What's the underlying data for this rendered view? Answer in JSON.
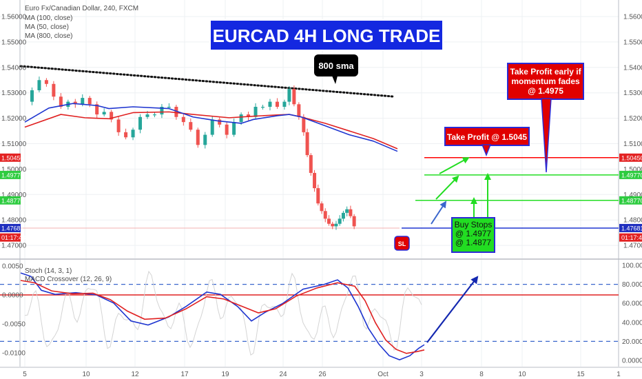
{
  "header": {
    "symbol_line": "Euro Fx/Canadian Dollar, 240, FXCM",
    "studies": [
      "MA (100, close)",
      "MA (50, close)",
      "MA (800, close)"
    ]
  },
  "lower_pane": {
    "studies": [
      "Stoch (14, 3, 1)",
      "MACD Crossover (12, 26, 9)"
    ]
  },
  "annotations": {
    "title": "EURCAD 4H LONG TRADE",
    "sma_label": "800 sma",
    "tp_early": [
      "Take Profit early if",
      "momentum fades",
      "@ 1.4975"
    ],
    "tp_main": "Take Profit @ 1.5045",
    "buy_stops": [
      "Buy Stops",
      "@ 1.4977",
      "@ 1.4877"
    ],
    "sl": "SL"
  },
  "price_axis": {
    "ticks": [
      "1.56000",
      "1.55000",
      "1.54000",
      "1.53000",
      "1.52000",
      "1.51000",
      "1.50000",
      "1.49000",
      "1.48000",
      "1.47000"
    ],
    "tags": [
      {
        "text": "1.50450",
        "value": 1.5045,
        "color": "#e32222"
      },
      {
        "text": "1.49770",
        "value": 1.4977,
        "color": "#2ecc40"
      },
      {
        "text": "1.48770",
        "value": 1.4877,
        "color": "#2ecc40"
      },
      {
        "text": "1.47681",
        "value": 1.47681,
        "color": "#1f2fbf"
      },
      {
        "text": "01:17:48",
        "value": 1.4731,
        "color": "#e32222"
      }
    ]
  },
  "osc_axis_left": {
    "ticks": [
      "0.0050",
      "0.0000",
      "-0.0050",
      "-0.0100"
    ]
  },
  "osc_axis_right": {
    "ticks": [
      "100.0000",
      "80.0000",
      "60.0000",
      "40.0000",
      "20.0000",
      "0.0000"
    ]
  },
  "time_axis": {
    "ticks": [
      "5",
      "10",
      "12",
      "17",
      "19",
      "24",
      "26",
      "Oct",
      "3",
      "8",
      "10",
      "15",
      "1"
    ]
  },
  "colors": {
    "bull": "#26a69a",
    "bear": "#ef5350",
    "ma_blue": "#1e35d0",
    "ma_red": "#e02020",
    "sma800_dots": "#111111",
    "tp_red": "#ff0000",
    "entry_green": "#22dd22",
    "title_bg": "#1428e0"
  },
  "chart_data": [
    {
      "type": "candlestick",
      "title": "Euro Fx/Canadian Dollar, 240, FXCM",
      "ylim": [
        1.465,
        1.565
      ],
      "series": [
        {
          "name": "MA (100, close)",
          "values_x": [
            5,
            8,
            10,
            12,
            14,
            17,
            19,
            22,
            24,
            26,
            27,
            28,
            30,
            32,
            34,
            36
          ],
          "values_y": [
            1.5165,
            1.5215,
            1.5202,
            1.5198,
            1.5222,
            1.5225,
            1.5215,
            1.5202,
            1.5208,
            1.5213,
            1.5215,
            1.5205,
            1.518,
            1.515,
            1.512,
            1.508
          ]
        },
        {
          "name": "MA (50, close)",
          "values_x": [
            5,
            7,
            9,
            11,
            12,
            14,
            17,
            19,
            21,
            23,
            24,
            26,
            27,
            28,
            30,
            32,
            34,
            36
          ],
          "values_y": [
            1.5185,
            1.524,
            1.5258,
            1.525,
            1.5238,
            1.5245,
            1.5238,
            1.5205,
            1.519,
            1.518,
            1.5195,
            1.521,
            1.5215,
            1.5205,
            1.517,
            1.5135,
            1.511,
            1.507
          ]
        },
        {
          "name": "MA (800, close)",
          "values_x": [
            5,
            36
          ],
          "values_y": [
            1.5405,
            1.5285
          ]
        }
      ],
      "levels": [
        1.5045,
        1.4977,
        1.4877,
        1.47681
      ]
    },
    {
      "type": "line",
      "title": "MACD Crossover (12, 26, 9)",
      "ylim": [
        -0.0115,
        0.0055
      ],
      "zero_line": 0.0,
      "stoch_levels": [
        80,
        20
      ],
      "series": [
        {
          "name": "Stoch (14, 3, 1)",
          "values": []
        }
      ]
    }
  ]
}
